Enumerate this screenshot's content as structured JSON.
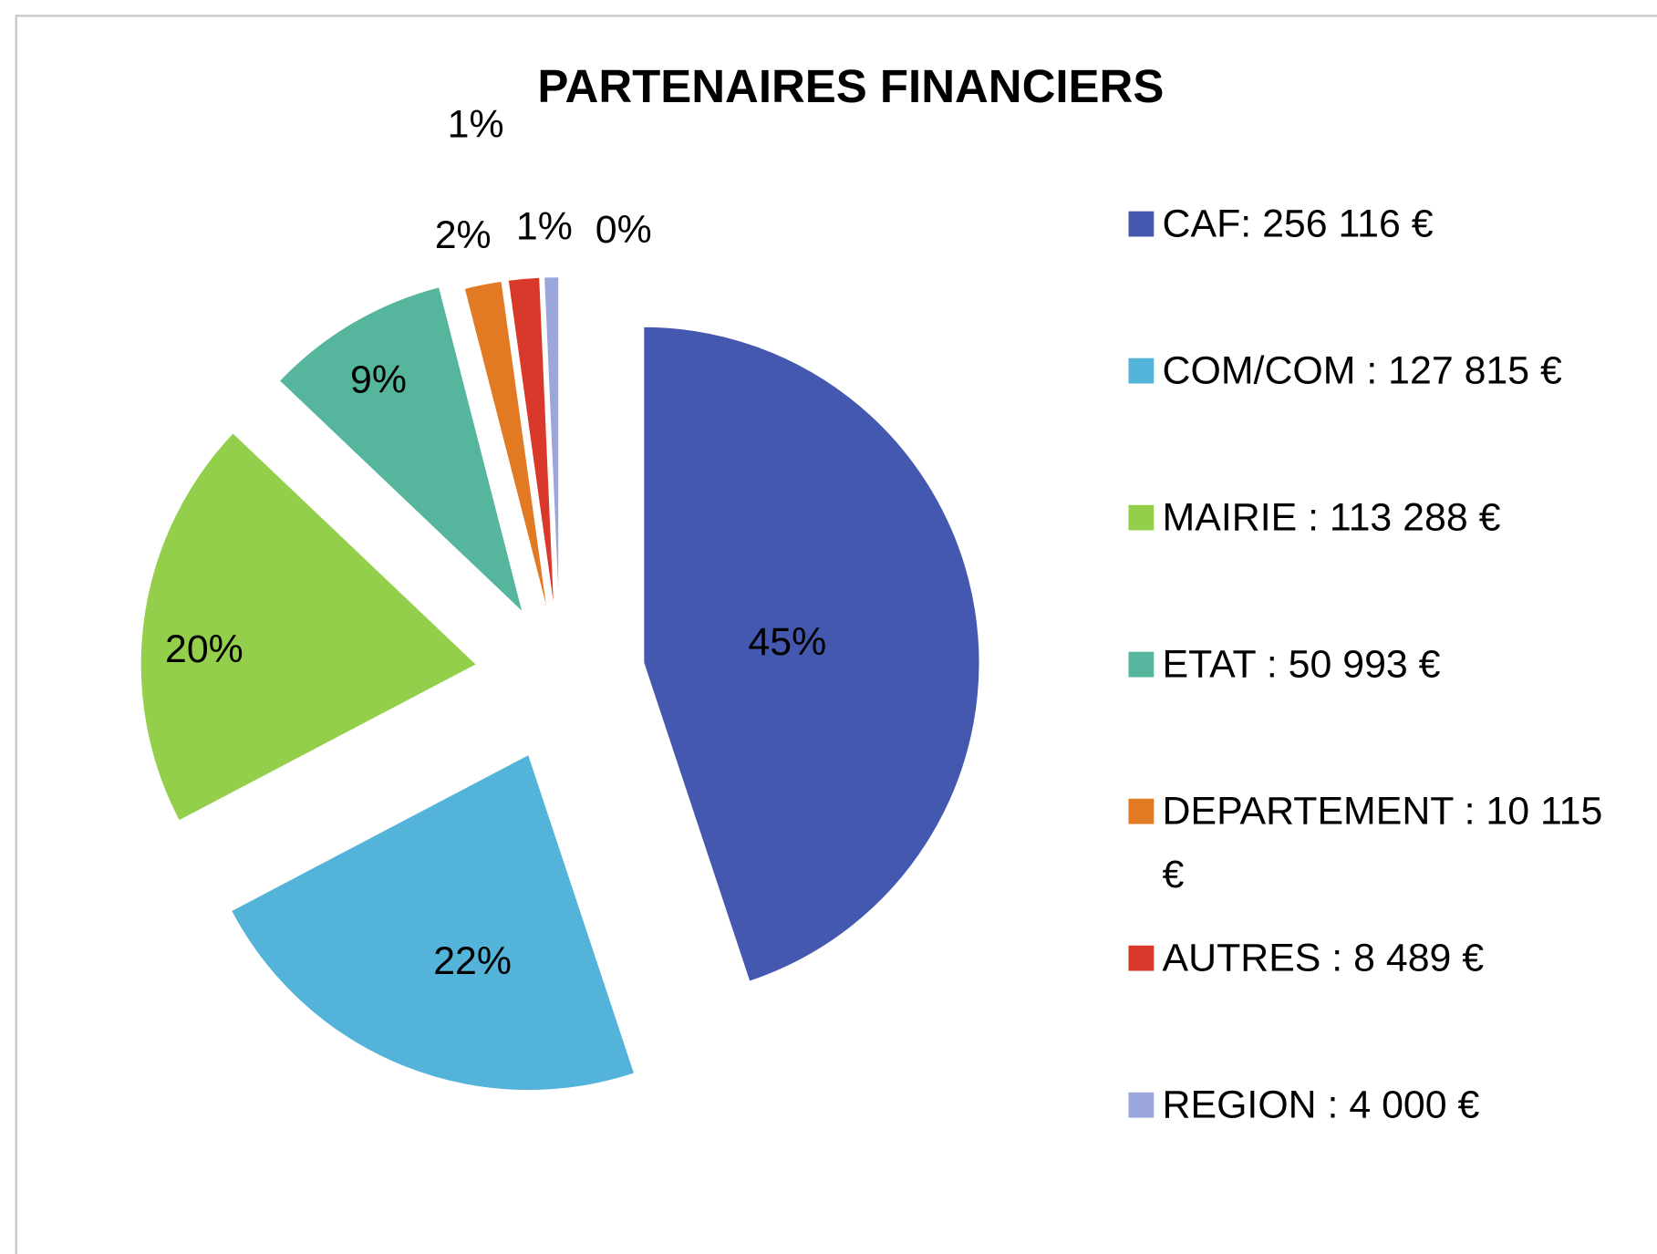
{
  "chart_data": {
    "type": "pie",
    "title": "PARTENAIRES FINANCIERS",
    "categories": [
      "CAF: 256 116 €",
      "COM/COM : 127 815 €",
      "MAIRIE : 113 288 €",
      "ETAT : 50 993 €",
      "DEPARTEMENT : 10 115 €",
      "AUTRES : 8 489 €",
      "REGION : 4 000 €",
      null
    ],
    "values": [
      44.9,
      22.4,
      19.8,
      8.9,
      1.8,
      1.5,
      0.7,
      0
    ],
    "value_labels": [
      "45%",
      "22%",
      "20%",
      "9%",
      "2%",
      "1%",
      "1%",
      "0%"
    ],
    "colors": [
      "#4558b0",
      "#53b3d9",
      "#93cf4a",
      "#55b69d",
      "#e17a22",
      "#d9392a",
      "#9ba6dd",
      null
    ],
    "legend": "right"
  }
}
